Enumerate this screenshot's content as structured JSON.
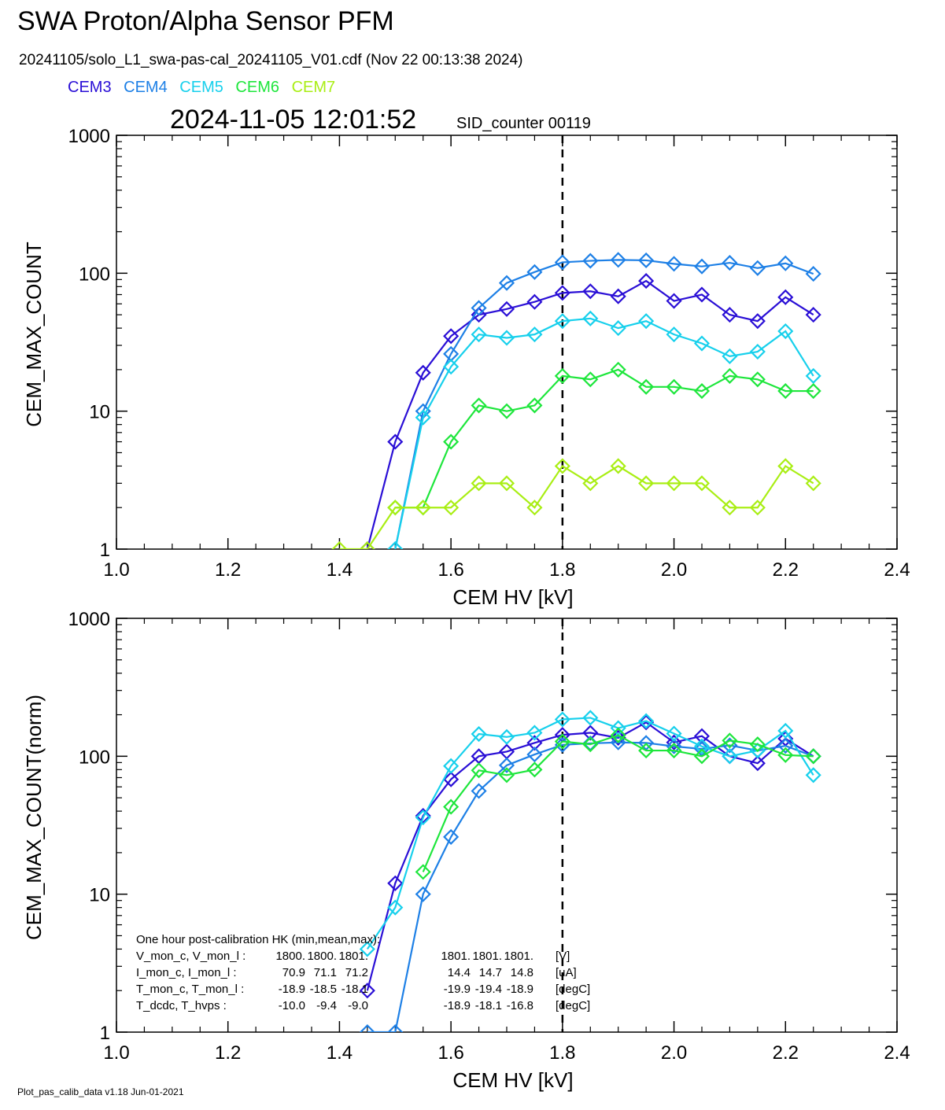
{
  "header": {
    "title": "SWA Proton/Alpha Sensor PFM",
    "file_info": "20241105/solo_L1_swa-pas-cal_20241105_V01.cdf  (Nov 22 00:13:38 2024)",
    "timestamp": "2024-11-05 12:01:52",
    "sid_counter": "SID_counter 00119"
  },
  "legend": [
    {
      "label": "CEM3",
      "color": "#2a0fd6"
    },
    {
      "label": "CEM4",
      "color": "#1e80e6"
    },
    {
      "label": "CEM5",
      "color": "#17d0ec"
    },
    {
      "label": "CEM6",
      "color": "#1ee63c"
    },
    {
      "label": "CEM7",
      "color": "#a9ee14"
    }
  ],
  "footer": "Plot_pas_calib_data v1.18 Jun-01-2021",
  "hk_note": {
    "title": "One hour post-calibration HK (min,mean,max):",
    "rows": [
      {
        "label": "V_mon_c, V_mon_l :",
        "c": [
          "1800.",
          "1800.",
          "1801."
        ],
        "l": [
          "1801.",
          "1801.",
          "1801."
        ],
        "unit": "[V]"
      },
      {
        "label": "I_mon_c,  I_mon_l :",
        "c": [
          "70.9",
          "71.1",
          "71.2"
        ],
        "l": [
          "14.4",
          "14.7",
          "14.8"
        ],
        "unit": "[uA]"
      },
      {
        "label": "T_mon_c, T_mon_l :",
        "c": [
          "-18.9",
          "-18.5",
          "-18.1"
        ],
        "l": [
          "-19.9",
          "-19.4",
          "-18.9"
        ],
        "unit": "[degC]"
      },
      {
        "label": "T_dcdc,    T_hvps :",
        "c": [
          "-10.0",
          "-9.4",
          "-9.0"
        ],
        "l": [
          "-18.9",
          "-18.1",
          "-16.8"
        ],
        "unit": "[degC]"
      }
    ]
  },
  "chart_data": [
    {
      "type": "line",
      "xlabel": "CEM HV [kV]",
      "ylabel": "CEM_MAX_COUNT",
      "xlim": [
        1.0,
        2.4
      ],
      "ylim": [
        1,
        1000
      ],
      "yscale": "log",
      "x_ticks": [
        "1.0",
        "1.2",
        "1.4",
        "1.6",
        "1.8",
        "2.0",
        "2.2",
        "2.4"
      ],
      "y_ticks": [
        "1",
        "10",
        "100",
        "1000"
      ],
      "vline": 1.8,
      "x": [
        1.4,
        1.45,
        1.5,
        1.55,
        1.6,
        1.65,
        1.7,
        1.75,
        1.8,
        1.85,
        1.9,
        1.95,
        2.0,
        2.05,
        2.1,
        2.15,
        2.2,
        2.25
      ],
      "series": [
        {
          "name": "CEM3",
          "values": [
            null,
            1,
            6,
            19,
            35,
            50,
            55,
            62,
            72,
            74,
            68,
            88,
            63,
            70,
            50,
            45,
            67,
            50
          ]
        },
        {
          "name": "CEM4",
          "values": [
            null,
            null,
            1,
            10,
            26,
            56,
            85,
            102,
            120,
            123,
            125,
            124,
            117,
            112,
            119,
            109,
            118,
            99
          ]
        },
        {
          "name": "CEM5",
          "values": [
            null,
            null,
            1,
            9,
            21,
            36,
            34,
            36,
            45,
            47,
            40,
            45,
            36,
            31,
            25,
            27,
            38,
            18
          ]
        },
        {
          "name": "CEM6",
          "values": [
            null,
            null,
            2,
            2,
            6,
            11,
            10,
            11,
            18,
            17,
            20,
            15,
            15,
            14,
            18,
            17,
            14,
            14
          ]
        },
        {
          "name": "CEM7",
          "values": [
            1,
            1,
            2,
            2,
            2,
            3,
            3,
            2,
            4,
            3,
            4,
            3,
            3,
            3,
            2,
            2,
            4,
            3
          ]
        }
      ]
    },
    {
      "type": "line",
      "xlabel": "CEM HV [kV]",
      "ylabel": "CEM_MAX_COUNT(norm)",
      "xlim": [
        1.0,
        2.4
      ],
      "ylim": [
        1,
        1000
      ],
      "yscale": "log",
      "x_ticks": [
        "1.0",
        "1.2",
        "1.4",
        "1.6",
        "1.8",
        "2.0",
        "2.2",
        "2.4"
      ],
      "y_ticks": [
        "1",
        "10",
        "100",
        "1000"
      ],
      "vline": 1.8,
      "x": [
        1.4,
        1.45,
        1.5,
        1.55,
        1.6,
        1.65,
        1.7,
        1.75,
        1.8,
        1.85,
        1.9,
        1.95,
        2.0,
        2.05,
        2.1,
        2.15,
        2.2,
        2.25
      ],
      "series": [
        {
          "name": "CEM3",
          "values": [
            null,
            2,
            12,
            37,
            68,
            100,
            108,
            125,
            143,
            148,
            136,
            176,
            126,
            140,
            100,
            89,
            134,
            100
          ]
        },
        {
          "name": "CEM4",
          "values": [
            null,
            1,
            1,
            10,
            26,
            56,
            86,
            103,
            121,
            124,
            126,
            125,
            118,
            113,
            120,
            110,
            119,
            100
          ]
        },
        {
          "name": "CEM5",
          "values": [
            null,
            4,
            8,
            36,
            85,
            145,
            138,
            148,
            185,
            190,
            160,
            180,
            146,
            118,
            100,
            110,
            153,
            73
          ]
        },
        {
          "name": "CEM6",
          "values": [
            null,
            null,
            null,
            14.5,
            43,
            79,
            73,
            80,
            128,
            122,
            142,
            110,
            110,
            100,
            130,
            122,
            102,
            100
          ]
        },
        {
          "name": "CEM7",
          "values": [
            null,
            null,
            null,
            null,
            null,
            null,
            null,
            null,
            null,
            null,
            null,
            null,
            null,
            null,
            null,
            null,
            null,
            null
          ]
        }
      ]
    }
  ]
}
